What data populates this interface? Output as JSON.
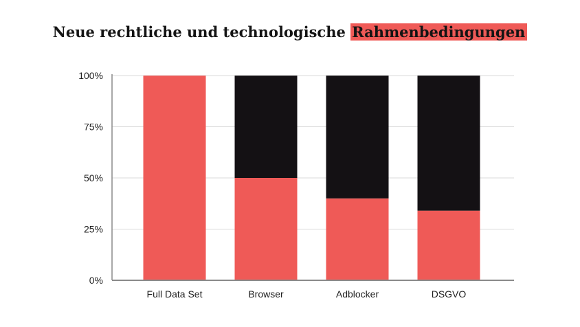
{
  "title": {
    "text": "Neue rechtliche und technologische",
    "highlight": "Rahmenbedingungen"
  },
  "colors": {
    "red": "#ef5a57",
    "black": "#141114",
    "grid": "#d9d9d9",
    "axis": "#8a8a8a"
  },
  "chart_data": {
    "type": "bar",
    "stacked": true,
    "categories": [
      "Full Data Set",
      "Browser",
      "Adblocker",
      "DSGVO"
    ],
    "series": [
      {
        "color": "#ef5a57",
        "values": [
          100,
          50,
          40,
          34
        ]
      },
      {
        "color": "#141114",
        "values": [
          0,
          50,
          60,
          66
        ]
      }
    ],
    "y_ticks": [
      "0%",
      "25%",
      "50%",
      "75%",
      "100%"
    ],
    "ylim": [
      0,
      100
    ],
    "grid": true,
    "legend": "none"
  }
}
